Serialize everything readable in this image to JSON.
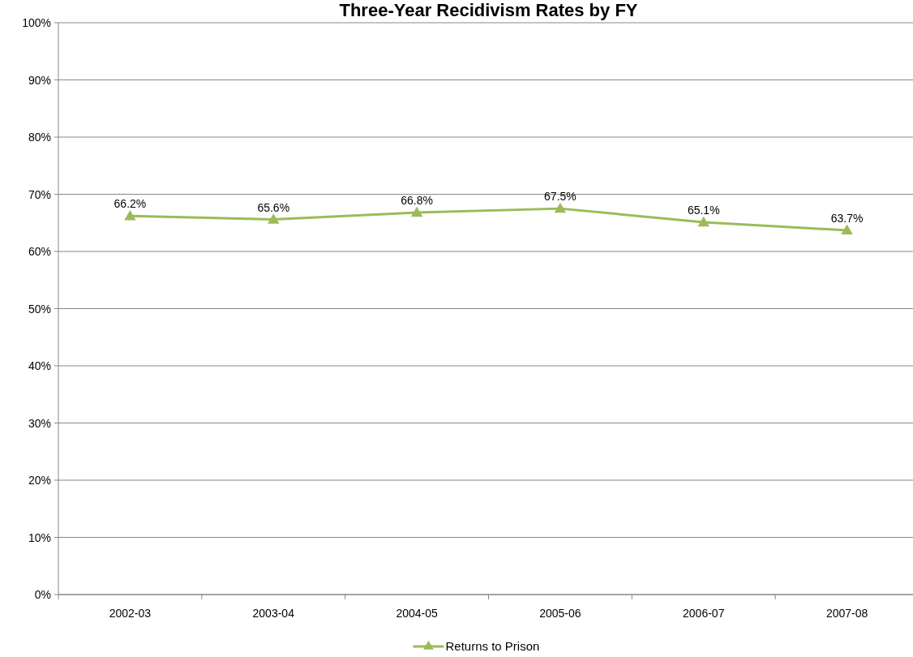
{
  "chart_data": {
    "type": "line",
    "title": "Three-Year Recidivism Rates by FY",
    "categories": [
      "2002-03",
      "2003-04",
      "2004-05",
      "2005-06",
      "2006-07",
      "2007-08"
    ],
    "series": [
      {
        "name": "Returns to Prison",
        "color": "#9bbb59",
        "values": [
          66.2,
          65.6,
          66.8,
          67.5,
          65.1,
          63.7
        ],
        "value_labels": [
          "66.2%",
          "65.6%",
          "66.8%",
          "67.5%",
          "65.1%",
          "63.7%"
        ]
      }
    ],
    "ylim": [
      0,
      100
    ],
    "yticks": [
      {
        "value": 0,
        "label": "0%"
      },
      {
        "value": 10,
        "label": "10%"
      },
      {
        "value": 20,
        "label": "20%"
      },
      {
        "value": 30,
        "label": "30%"
      },
      {
        "value": 40,
        "label": "40%"
      },
      {
        "value": 50,
        "label": "50%"
      },
      {
        "value": 60,
        "label": "60%"
      },
      {
        "value": 70,
        "label": "70%"
      },
      {
        "value": 80,
        "label": "80%"
      },
      {
        "value": 90,
        "label": "90%"
      },
      {
        "value": 100,
        "label": "100%"
      }
    ],
    "grid": "y",
    "legend": "bottom",
    "marker": "triangle",
    "line_style": "solid"
  }
}
